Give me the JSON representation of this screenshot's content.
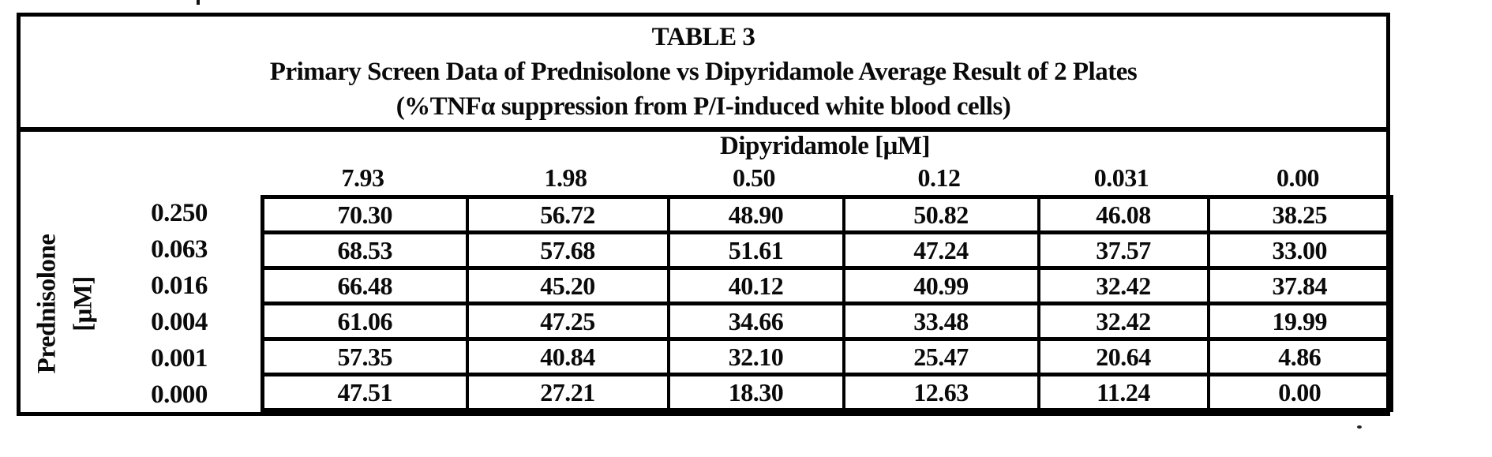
{
  "document": {
    "table": {
      "caption": {
        "number": "TABLE 3",
        "title": "Primary Screen Data of Prednisolone vs Dipyridamole Average Result of 2 Plates",
        "subtitle": "(%TNFα suppression from P/I-induced white blood cells)"
      },
      "column_group_label": "Dipyridamole [μM]",
      "row_group_label": {
        "line1": "Prednisolone",
        "line2": "[μM]"
      },
      "column_headers": [
        "7.93",
        "1.98",
        "0.50",
        "0.12",
        "0.031",
        "0.00"
      ],
      "row_headers": [
        "0.250",
        "0.063",
        "0.016",
        "0.004",
        "0.001",
        "0.000"
      ],
      "cells": [
        [
          "70.30",
          "56.72",
          "48.90",
          "50.82",
          "46.08",
          "38.25"
        ],
        [
          "68.53",
          "57.68",
          "51.61",
          "47.24",
          "37.57",
          "33.00"
        ],
        [
          "66.48",
          "45.20",
          "40.12",
          "40.99",
          "32.42",
          "37.84"
        ],
        [
          "61.06",
          "47.25",
          "34.66",
          "33.48",
          "32.42",
          "19.99"
        ],
        [
          "57.35",
          "40.84",
          "32.10",
          "25.47",
          "20.64",
          "4.86"
        ],
        [
          "47.51",
          "27.21",
          "18.30",
          "12.63",
          "11.24",
          "0.00"
        ]
      ]
    },
    "ink_color": "#0a0a0a",
    "paper_color": "#ffffff"
  }
}
